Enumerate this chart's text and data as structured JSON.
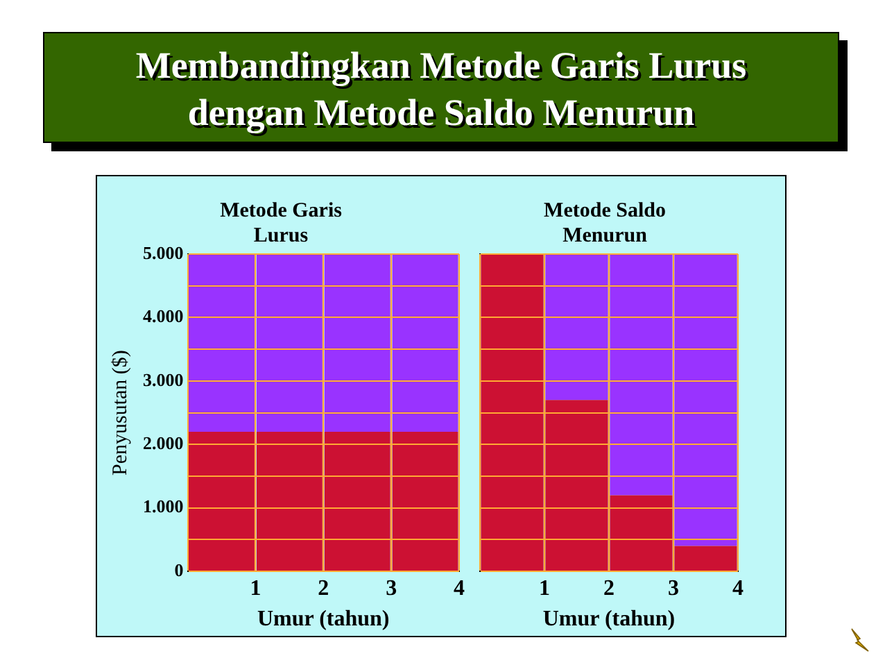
{
  "chart_data": [
    {
      "type": "other",
      "title": "Membandingkan Metode Garis Lurus dengan Metode Saldo Menurun"
    },
    {
      "type": "bar",
      "title": "Metode Garis Lurus",
      "xlabel": "Umur (tahun)",
      "ylabel": "Penyusutan ($)",
      "categories": [
        "1",
        "2",
        "3",
        "4"
      ],
      "stacked": true,
      "series": [
        {
          "color": "#cc1133",
          "values": [
            2200,
            2200,
            2200,
            2200
          ]
        },
        {
          "color": "#9933ff",
          "values": [
            2800,
            2800,
            2800,
            2800
          ]
        }
      ],
      "ylim": [
        0,
        5000
      ],
      "yticks": [
        0,
        {
          "value": 500,
          "label": null
        },
        {
          "value": 1000,
          "label": "1.000"
        },
        {
          "value": 1500,
          "label": null
        },
        {
          "value": 2000,
          "label": "2.000"
        },
        {
          "value": 2500,
          "label": null
        },
        {
          "value": 3000,
          "label": "3.000"
        },
        {
          "value": 3500,
          "label": null
        },
        {
          "value": 4000,
          "label": "4.000"
        },
        {
          "value": 4500,
          "label": null
        },
        {
          "value": 5000,
          "label": "5.000"
        }
      ],
      "grid": true,
      "legend": false
    },
    {
      "type": "bar",
      "title": "Metode Saldo Menurun",
      "xlabel": "Umur (tahun)",
      "categories": [
        "1",
        "2",
        "3",
        "4"
      ],
      "stacked": true,
      "series": [
        {
          "color": "#cc1133",
          "values": [
            5000,
            2700,
            1200,
            400
          ]
        },
        {
          "color": "#9933ff",
          "values": [
            0,
            2300,
            3800,
            4600
          ]
        }
      ],
      "ylim": [
        0,
        5000
      ],
      "yticks": [
        {
          "value": 0,
          "label": null
        },
        {
          "value": 500,
          "label": null
        },
        {
          "value": 1000,
          "label": null
        },
        {
          "value": 1500,
          "label": null
        },
        {
          "value": 2000,
          "label": null
        },
        {
          "value": 2500,
          "label": null
        },
        {
          "value": 3000,
          "label": null
        },
        {
          "value": 3500,
          "label": null
        },
        {
          "value": 4000,
          "label": null
        },
        {
          "value": 4500,
          "label": null
        },
        {
          "value": 5000,
          "label": null
        }
      ],
      "grid": true,
      "legend": false,
      "tick_labels": "x"
    }
  ]
}
